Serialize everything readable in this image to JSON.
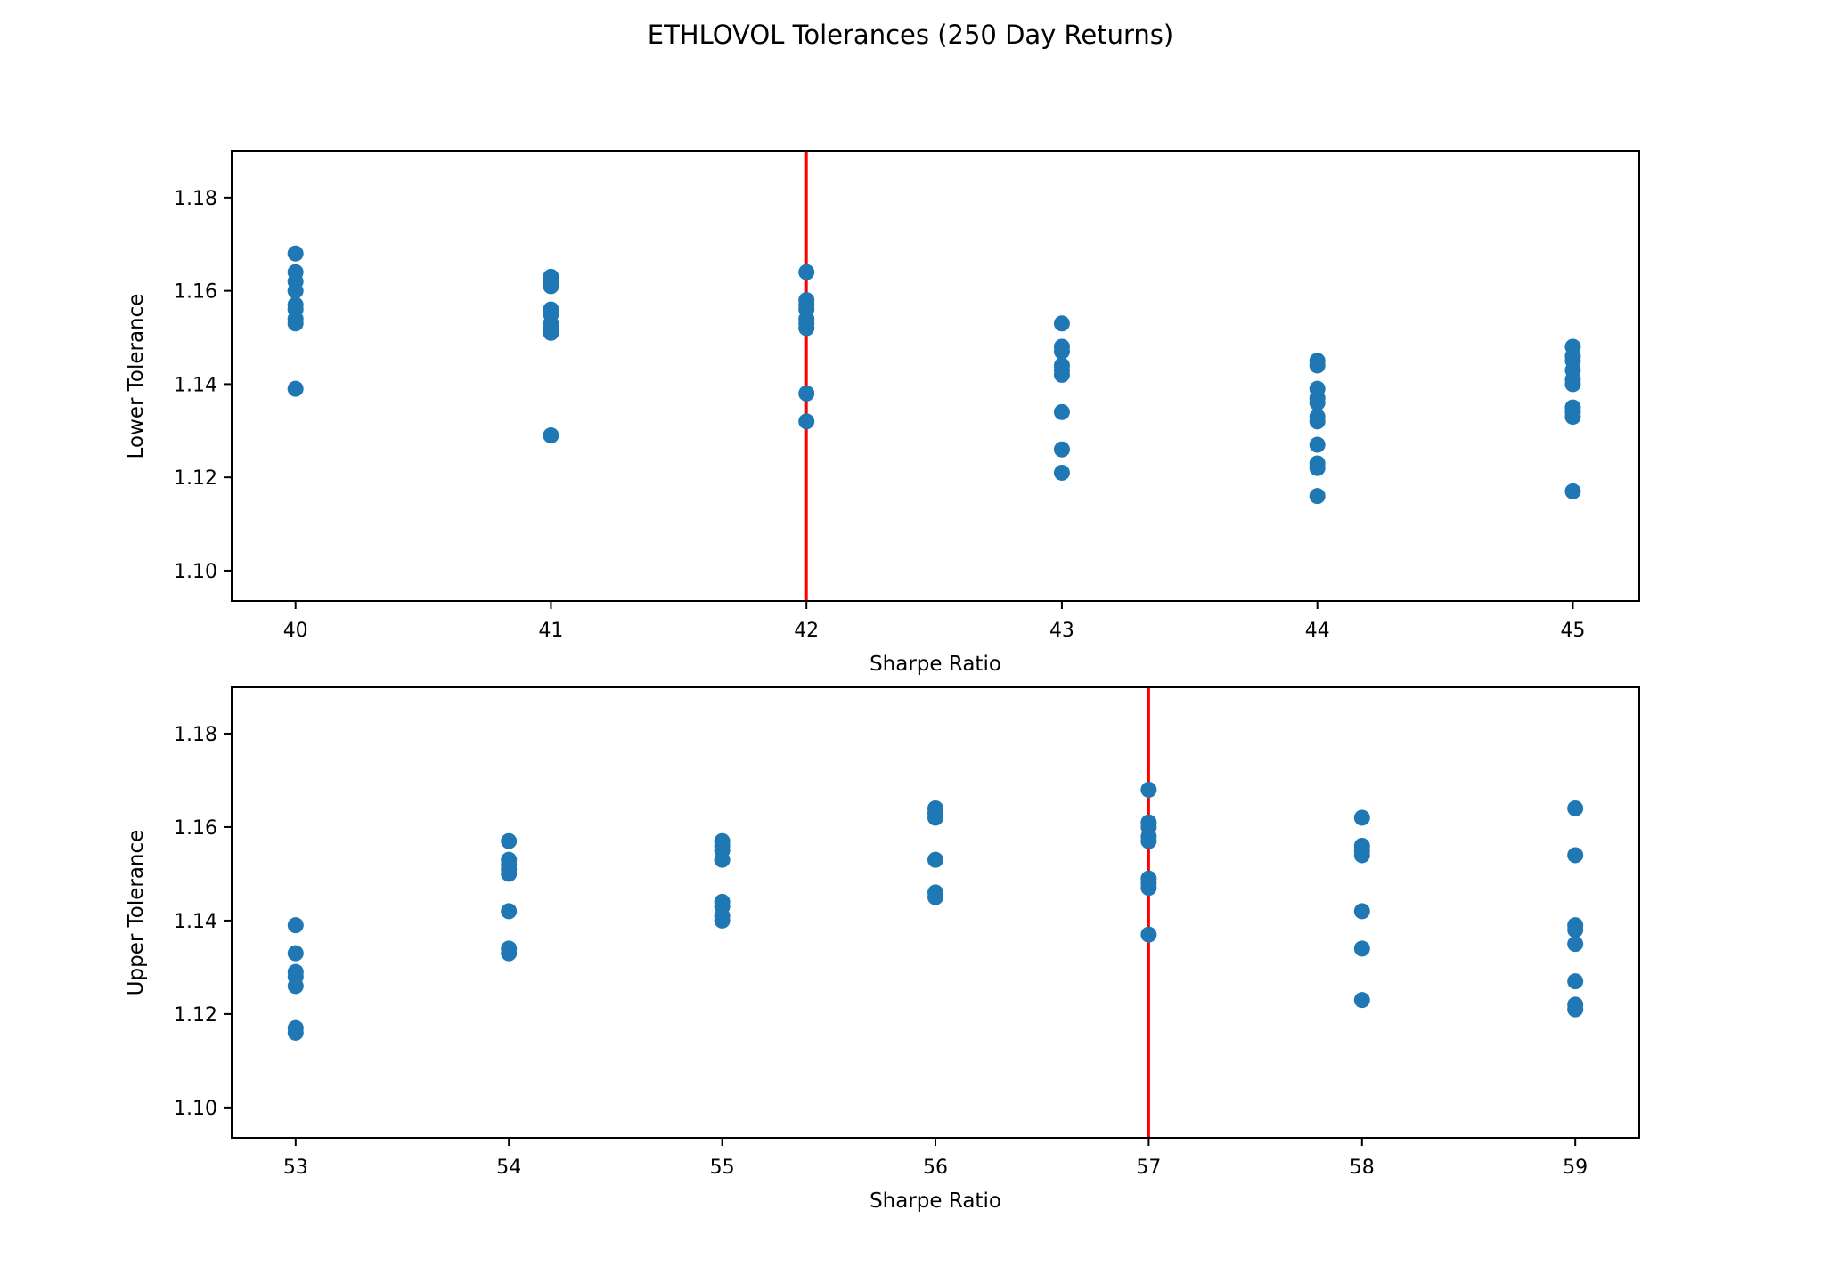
{
  "title": "ETHLOVOL Tolerances (250 Day Returns)",
  "colors": {
    "marker": "#1f77b4",
    "vline": "#ff0000",
    "axes": "#000000",
    "tick_text": "#000000"
  },
  "chart_data": [
    {
      "type": "scatter",
      "name": "lower-tolerance-plot",
      "xlabel": "Sharpe Ratio",
      "ylabel": "Lower Tolerance",
      "xlim": [
        39.75,
        45.26
      ],
      "ylim": [
        1.0935,
        1.1899
      ],
      "xticks": [
        40,
        41,
        42,
        43,
        44,
        45
      ],
      "xtick_labels": [
        "40",
        "41",
        "42",
        "43",
        "44",
        "45"
      ],
      "yticks": [
        1.1,
        1.12,
        1.14,
        1.16,
        1.18
      ],
      "ytick_labels": [
        "1.10",
        "1.12",
        "1.14",
        "1.16",
        "1.18"
      ],
      "vline_x": 42,
      "grid": false,
      "groups": [
        {
          "x": 40,
          "y": [
            1.168,
            1.164,
            1.162,
            1.16,
            1.157,
            1.156,
            1.154,
            1.153,
            1.139
          ]
        },
        {
          "x": 41,
          "y": [
            1.163,
            1.162,
            1.161,
            1.156,
            1.155,
            1.153,
            1.152,
            1.151,
            1.129
          ]
        },
        {
          "x": 42,
          "y": [
            1.164,
            1.158,
            1.157,
            1.156,
            1.154,
            1.153,
            1.152,
            1.138,
            1.132
          ]
        },
        {
          "x": 43,
          "y": [
            1.153,
            1.148,
            1.147,
            1.144,
            1.143,
            1.142,
            1.134,
            1.126,
            1.121
          ]
        },
        {
          "x": 44,
          "y": [
            1.145,
            1.144,
            1.139,
            1.137,
            1.136,
            1.133,
            1.132,
            1.127,
            1.123,
            1.122,
            1.116
          ]
        },
        {
          "x": 45,
          "y": [
            1.148,
            1.146,
            1.145,
            1.143,
            1.141,
            1.14,
            1.135,
            1.134,
            1.133,
            1.117
          ]
        }
      ]
    },
    {
      "type": "scatter",
      "name": "upper-tolerance-plot",
      "xlabel": "Sharpe Ratio",
      "ylabel": "Upper Tolerance",
      "xlim": [
        52.7,
        59.3
      ],
      "ylim": [
        1.0935,
        1.1899
      ],
      "xticks": [
        53,
        54,
        55,
        56,
        57,
        58,
        59
      ],
      "xtick_labels": [
        "53",
        "54",
        "55",
        "56",
        "57",
        "58",
        "59"
      ],
      "yticks": [
        1.1,
        1.12,
        1.14,
        1.16,
        1.18
      ],
      "ytick_labels": [
        "1.10",
        "1.12",
        "1.14",
        "1.16",
        "1.18"
      ],
      "vline_x": 57,
      "grid": false,
      "groups": [
        {
          "x": 53,
          "y": [
            1.139,
            1.133,
            1.129,
            1.128,
            1.126,
            1.117,
            1.116
          ]
        },
        {
          "x": 54,
          "y": [
            1.157,
            1.153,
            1.152,
            1.151,
            1.15,
            1.142,
            1.134,
            1.133
          ]
        },
        {
          "x": 55,
          "y": [
            1.157,
            1.156,
            1.155,
            1.153,
            1.144,
            1.143,
            1.141,
            1.14
          ]
        },
        {
          "x": 56,
          "y": [
            1.164,
            1.163,
            1.162,
            1.153,
            1.146,
            1.145
          ]
        },
        {
          "x": 57,
          "y": [
            1.168,
            1.161,
            1.16,
            1.158,
            1.157,
            1.149,
            1.148,
            1.147,
            1.137
          ]
        },
        {
          "x": 58,
          "y": [
            1.162,
            1.156,
            1.155,
            1.154,
            1.142,
            1.134,
            1.123
          ]
        },
        {
          "x": 59,
          "y": [
            1.164,
            1.154,
            1.139,
            1.138,
            1.135,
            1.127,
            1.122,
            1.121
          ]
        }
      ]
    }
  ]
}
